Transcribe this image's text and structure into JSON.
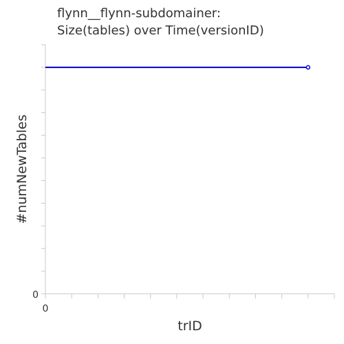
{
  "chart_data": {
    "type": "line",
    "title_lines": [
      "flynn__flynn-subdomainer:",
      "Size(tables) over Time(versionID)"
    ],
    "xlabel": "trID",
    "ylabel": "#numNewTables",
    "x_tick_labels": [
      "0"
    ],
    "y_tick_labels": [
      "0"
    ],
    "xlim": [
      0,
      11
    ],
    "ylim": [
      0,
      11
    ],
    "grid": false,
    "legend": "none",
    "series": [
      {
        "x": [
          0,
          10
        ],
        "y": [
          10,
          10
        ],
        "color": "#0000cc",
        "marker": "circle-open"
      }
    ]
  }
}
